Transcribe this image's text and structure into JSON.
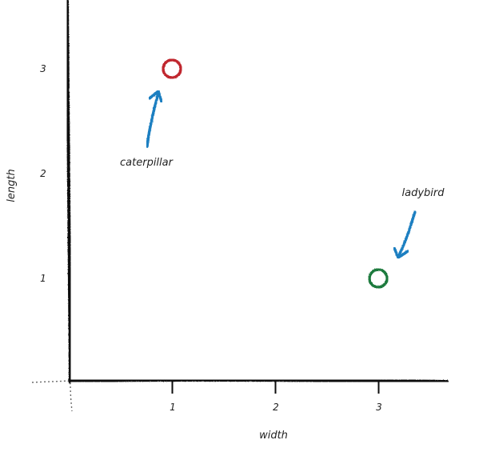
{
  "chart_data": {
    "type": "scatter",
    "xlabel": "width",
    "ylabel": "length",
    "xlim": [
      0,
      3.6
    ],
    "ylim": [
      0,
      3.6
    ],
    "x_ticks": [
      1,
      2,
      3
    ],
    "y_ticks": [
      1,
      2,
      3
    ],
    "tick_labels_x": [
      "1",
      "2",
      "3"
    ],
    "tick_labels_y": [
      "1",
      "2",
      "3"
    ],
    "grid": false,
    "points": [
      {
        "label": "caterpillar",
        "x": 1,
        "y": 3,
        "color": "#c0262d"
      },
      {
        "label": "ladybird",
        "x": 3,
        "y": 1,
        "color": "#1e7a3e"
      }
    ],
    "annotation_arrow_color": "#1f7fc1"
  }
}
